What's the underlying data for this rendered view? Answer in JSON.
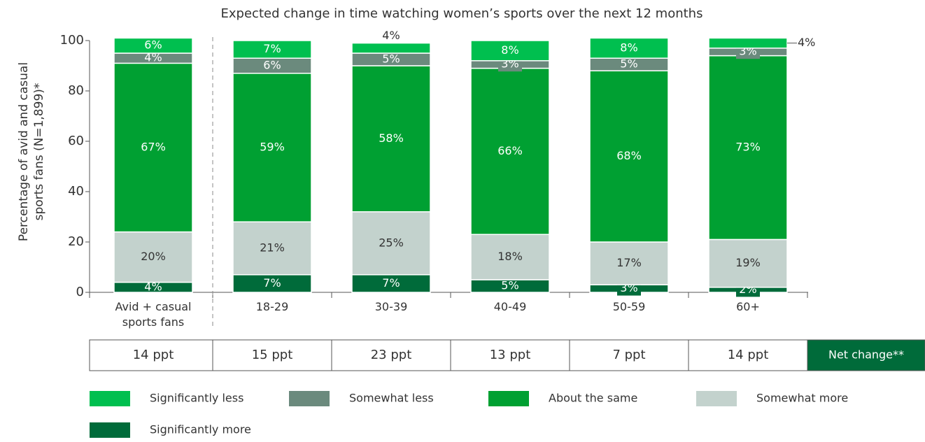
{
  "chart_data": {
    "type": "stacked_bar",
    "title": "Expected change in time watching women’s sports over the next 12 months",
    "ylabel": "Percentage of avid and casual sports fans (N=1,899)*",
    "categories": [
      "Avid + casual sports fans",
      "18-29",
      "30-39",
      "40-49",
      "50-59",
      "60+"
    ],
    "series": [
      {
        "name": "Significantly more",
        "color": "#006b3a",
        "values": [
          4,
          7,
          7,
          5,
          3,
          2
        ],
        "value_labels": [
          "4%",
          "7%",
          "7%",
          "5%",
          "3%",
          "2%"
        ]
      },
      {
        "name": "Somewhat more",
        "color": "#c3d2cd",
        "values": [
          20,
          21,
          25,
          18,
          17,
          19
        ],
        "value_labels": [
          "20%",
          "21%",
          "25%",
          "18%",
          "17%",
          "19%"
        ]
      },
      {
        "name": "About the same",
        "color": "#00a032",
        "values": [
          67,
          59,
          58,
          66,
          68,
          73
        ],
        "value_labels": [
          "67%",
          "59%",
          "58%",
          "66%",
          "68%",
          "73%"
        ]
      },
      {
        "name": "Somewhat less",
        "color": "#6b8a7d",
        "values": [
          4,
          6,
          5,
          3,
          5,
          3
        ],
        "value_labels": [
          "4%",
          "6%",
          "5%",
          "3%",
          "5%",
          "3%"
        ]
      },
      {
        "name": "Significantly less",
        "color": "#00bf4f",
        "values": [
          6,
          7,
          4,
          8,
          8,
          4
        ],
        "value_labels": [
          "6%",
          "7%",
          "4%",
          "8%",
          "8%",
          "4%"
        ]
      }
    ],
    "ylim": [
      0,
      100
    ],
    "yticks": [
      0,
      20,
      40,
      60,
      80,
      100
    ],
    "net_change": {
      "values": [
        "14 ppt",
        "15 ppt",
        "23 ppt",
        "13 ppt",
        "7 ppt",
        "14 ppt"
      ],
      "label": "Net change**"
    }
  }
}
